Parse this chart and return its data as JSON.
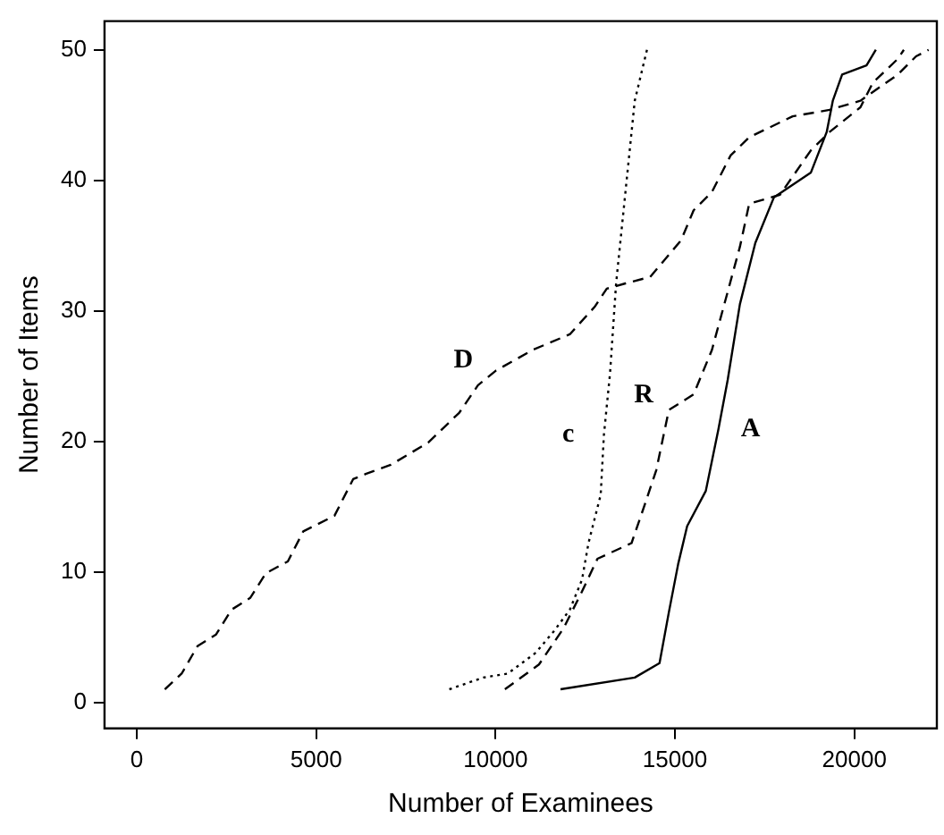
{
  "chart_data": {
    "type": "line",
    "xlabel": "Number of Examinees",
    "ylabel": "Number of Items",
    "xlim": [
      -900,
      22300
    ],
    "ylim": [
      -2,
      52.2
    ],
    "xticks": [
      0,
      5000,
      10000,
      15000,
      20000
    ],
    "yticks": [
      0,
      10,
      20,
      30,
      40,
      50
    ],
    "grid": false,
    "legend": false,
    "marker": "none",
    "series": [
      {
        "name": "D",
        "color": "#000000",
        "line_style": "dashed",
        "x": [
          780,
          1250,
          1690,
          2210,
          2640,
          3160,
          3600,
          4210,
          4640,
          5510,
          6030,
          6380,
          7080,
          8120,
          8990,
          9510,
          10000,
          11030,
          12070,
          12760,
          13100,
          13620,
          14310,
          15170,
          15520,
          16030,
          16550,
          17070,
          18280,
          19310,
          20170,
          21210,
          21720,
          22070
        ],
        "values": [
          1,
          2.2,
          4.3,
          5.2,
          7.1,
          8,
          9.9,
          10.8,
          13.1,
          14.3,
          17.1,
          17.5,
          18.2,
          19.9,
          22.2,
          24.3,
          25.4,
          27,
          28.2,
          30.3,
          31.7,
          32.1,
          32.6,
          35.4,
          37.7,
          39.1,
          41.9,
          43.3,
          44.9,
          45.4,
          46.1,
          48.1,
          49.5,
          50
        ]
      },
      {
        "name": "c",
        "color": "#000000",
        "line_style": "dotted",
        "x": [
          8710,
          9660,
          10340,
          11120,
          11640,
          12070,
          12410,
          12590,
          12930,
          13020,
          13190,
          13360,
          13620,
          13880,
          14220
        ],
        "values": [
          1,
          1.9,
          2.2,
          3.8,
          5.5,
          7.1,
          9.4,
          12.2,
          15.9,
          20.5,
          25.2,
          32.1,
          39.1,
          46.1,
          50
        ]
      },
      {
        "name": "R",
        "color": "#000000",
        "line_style": "dashed",
        "x": [
          10260,
          11210,
          11900,
          12410,
          12840,
          13790,
          14140,
          14480,
          14830,
          15520,
          16030,
          16810,
          17070,
          17930,
          18790,
          19310,
          20170,
          20520,
          21210,
          21380
        ],
        "values": [
          1,
          2.9,
          5.7,
          8.5,
          11,
          12.2,
          15,
          17.8,
          22.4,
          23.6,
          27,
          34.9,
          38.2,
          38.9,
          42.3,
          43.7,
          45.6,
          47.5,
          49.3,
          50
        ]
      },
      {
        "name": "A",
        "color": "#000000",
        "line_style": "solid",
        "x": [
          11810,
          13880,
          14570,
          14830,
          15090,
          15340,
          15860,
          16210,
          16470,
          16810,
          17240,
          17760,
          18790,
          19230,
          19400,
          19660,
          20340,
          20600
        ],
        "values": [
          1,
          1.9,
          3,
          6.9,
          10.6,
          13.5,
          16.2,
          20.9,
          24.7,
          30.5,
          35.2,
          38.7,
          40.6,
          43.7,
          46.1,
          48.1,
          48.8,
          50
        ]
      }
    ]
  }
}
